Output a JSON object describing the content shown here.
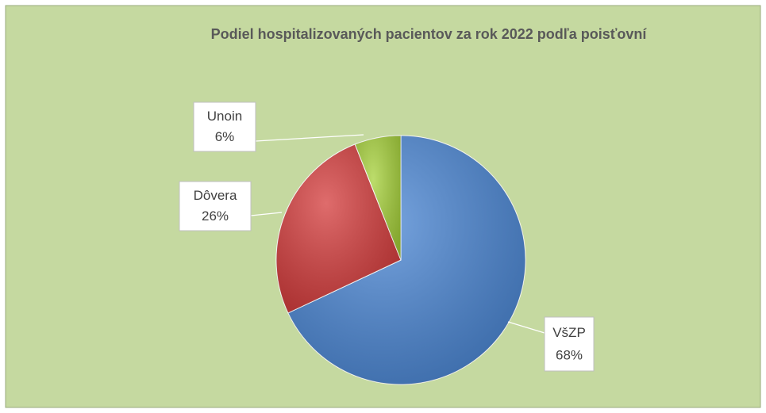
{
  "chart_data": {
    "type": "pie",
    "title": "Podiel hospitalizovaných pacientov za rok 2022 podľa poisťovní",
    "categories": [
      "VšZP",
      "Dôvera",
      "Unoin"
    ],
    "values": [
      68,
      26,
      6
    ],
    "value_labels": [
      "68%",
      "26%",
      "6%"
    ],
    "colors": [
      "#4a86d4",
      "#d43b3b",
      "#a6d13a"
    ]
  }
}
